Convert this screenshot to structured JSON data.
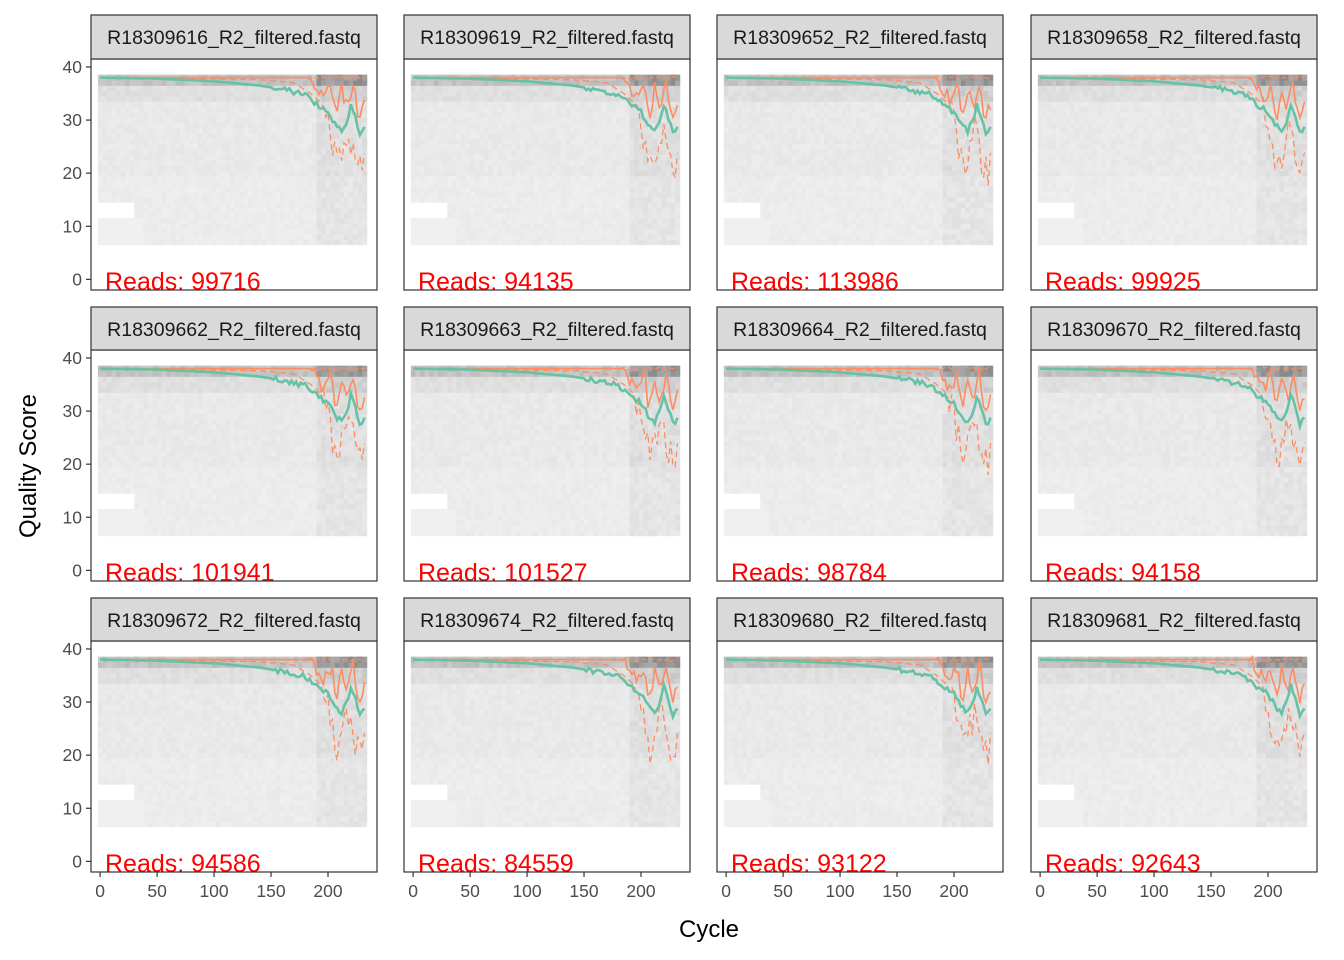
{
  "chart_data": {
    "type": "line",
    "xlabel": "Cycle",
    "ylabel": "Quality Score",
    "xlim": [
      -8,
      243
    ],
    "ylim": [
      -2,
      41.5
    ],
    "xticks": [
      0,
      50,
      100,
      150,
      200
    ],
    "yticks": [
      0,
      10,
      20,
      30,
      40
    ],
    "x_max_cycle": 232,
    "grid": false,
    "colors": {
      "mean": "#66c2a5",
      "median": "#fc8d62",
      "quartile": "#fc8d62",
      "reads_label": "#ff0000",
      "strip_fill": "#d9d9d9",
      "heat_low": "#f5f5f5",
      "heat_high": "#b3b3b3"
    },
    "reads_prefix": "Reads:  ",
    "panels": [
      {
        "title": "R18309616_R2_filtered.fastq",
        "reads": 99716
      },
      {
        "title": "R18309619_R2_filtered.fastq",
        "reads": 94135
      },
      {
        "title": "R18309652_R2_filtered.fastq",
        "reads": 113986
      },
      {
        "title": "R18309658_R2_filtered.fastq",
        "reads": 99925
      },
      {
        "title": "R18309662_R2_filtered.fastq",
        "reads": 101941
      },
      {
        "title": "R18309663_R2_filtered.fastq",
        "reads": 101527
      },
      {
        "title": "R18309664_R2_filtered.fastq",
        "reads": 98784
      },
      {
        "title": "R18309670_R2_filtered.fastq",
        "reads": 94158
      },
      {
        "title": "R18309672_R2_filtered.fastq",
        "reads": 94586
      },
      {
        "title": "R18309674_R2_filtered.fastq",
        "reads": 84559
      },
      {
        "title": "R18309680_R2_filtered.fastq",
        "reads": 93122
      },
      {
        "title": "R18309681_R2_filtered.fastq",
        "reads": 92643
      }
    ],
    "mean_profile": [
      [
        0,
        38
      ],
      [
        50,
        37.8
      ],
      [
        100,
        37.3
      ],
      [
        140,
        36.5
      ],
      [
        160,
        35.8
      ],
      [
        180,
        34.8
      ],
      [
        190,
        33
      ],
      [
        200,
        31.5
      ],
      [
        207,
        29
      ],
      [
        212,
        28
      ],
      [
        217,
        30
      ],
      [
        220,
        33
      ],
      [
        224,
        30.5
      ],
      [
        228,
        27.5
      ],
      [
        232,
        28.5
      ]
    ],
    "median_profile": [
      [
        0,
        38
      ],
      [
        185,
        38
      ],
      [
        190,
        36
      ],
      [
        197,
        34
      ],
      [
        203,
        37
      ],
      [
        207,
        30
      ],
      [
        212,
        36
      ],
      [
        217,
        32
      ],
      [
        222,
        37
      ],
      [
        227,
        30
      ],
      [
        232,
        33
      ]
    ],
    "q25_profile": [
      [
        0,
        38
      ],
      [
        140,
        37.6
      ],
      [
        170,
        37
      ],
      [
        185,
        35
      ],
      [
        195,
        33
      ],
      [
        202,
        27
      ],
      [
        208,
        21
      ],
      [
        213,
        24
      ],
      [
        218,
        28
      ],
      [
        224,
        23
      ],
      [
        230,
        20
      ],
      [
        232,
        22
      ]
    ],
    "q75_profile": [
      [
        0,
        38
      ],
      [
        232,
        38
      ]
    ]
  }
}
